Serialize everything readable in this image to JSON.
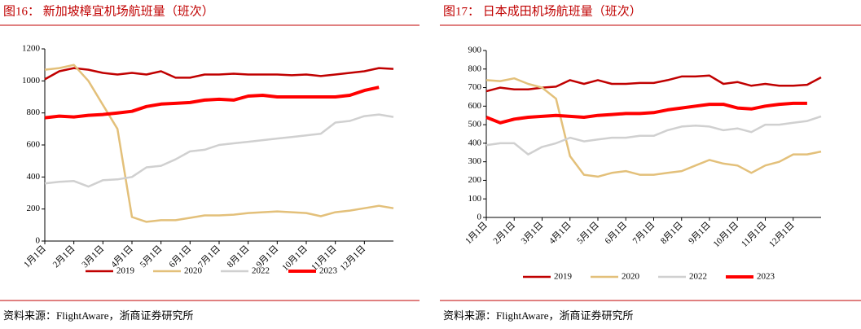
{
  "chart_data": [
    {
      "type": "line",
      "title": "图16：  新加坡樟宜机场航班量（班次）",
      "source": "资料来源：FlightAware，浙商证券研究所",
      "categories": [
        "1月1日",
        null,
        "2月1日",
        null,
        "3月1日",
        null,
        "4月1日",
        null,
        "5月1日",
        null,
        "6月1日",
        null,
        "7月1日",
        null,
        "8月1日",
        null,
        "9月1日",
        null,
        "10月1日",
        null,
        "11月1日",
        null,
        "12月1日",
        null,
        null
      ],
      "ylim": [
        0,
        1200
      ],
      "yticks": [
        0,
        200,
        400,
        600,
        800,
        1000,
        1200
      ],
      "grid": false,
      "series": [
        {
          "name": "2019",
          "color": "#c00000",
          "values": [
            1010,
            1060,
            1080,
            1070,
            1050,
            1040,
            1050,
            1040,
            1060,
            1020,
            1020,
            1040,
            1040,
            1045,
            1040,
            1040,
            1040,
            1035,
            1040,
            1030,
            1040,
            1050,
            1060,
            1080,
            1075
          ]
        },
        {
          "name": "2020",
          "color": "#e3c07a",
          "values": [
            1070,
            1080,
            1100,
            1000,
            850,
            700,
            150,
            120,
            130,
            130,
            145,
            160,
            160,
            165,
            175,
            180,
            185,
            180,
            175,
            155,
            180,
            190,
            205,
            220,
            205
          ]
        },
        {
          "name": "2022",
          "color": "#d0d0d0",
          "values": [
            360,
            370,
            375,
            340,
            380,
            385,
            400,
            460,
            470,
            510,
            560,
            570,
            600,
            610,
            620,
            630,
            640,
            650,
            660,
            670,
            740,
            750,
            780,
            790,
            775
          ]
        },
        {
          "name": "2023",
          "color": "#ff0000",
          "values": [
            770,
            780,
            775,
            785,
            790,
            800,
            810,
            840,
            855,
            860,
            865,
            880,
            885,
            880,
            905,
            910,
            900,
            900,
            900,
            900,
            900,
            910,
            940,
            960,
            null
          ]
        }
      ]
    },
    {
      "type": "line",
      "title": "图17：  日本成田机场航班量（班次）",
      "source": "资料来源：FlightAware，浙商证券研究所",
      "categories": [
        "1月1日",
        null,
        "2月1日",
        null,
        "3月1日",
        null,
        "4月1日",
        null,
        "5月1日",
        null,
        "6月1日",
        null,
        "7月1日",
        null,
        "8月1日",
        null,
        "9月1日",
        null,
        "10月1日",
        null,
        "11月1日",
        null,
        "12月1日",
        null,
        null
      ],
      "ylim": [
        0,
        900
      ],
      "yticks": [
        0,
        100,
        200,
        300,
        400,
        500,
        600,
        700,
        800,
        900
      ],
      "grid": false,
      "series": [
        {
          "name": "2019",
          "color": "#c00000",
          "values": [
            680,
            700,
            690,
            690,
            700,
            705,
            740,
            720,
            740,
            720,
            720,
            725,
            725,
            740,
            760,
            760,
            765,
            720,
            730,
            710,
            720,
            710,
            710,
            715,
            755
          ]
        },
        {
          "name": "2020",
          "color": "#e3c07a",
          "values": [
            740,
            735,
            750,
            720,
            700,
            640,
            330,
            230,
            220,
            240,
            250,
            230,
            230,
            240,
            250,
            280,
            310,
            290,
            280,
            240,
            280,
            300,
            340,
            340,
            355
          ]
        },
        {
          "name": "2022",
          "color": "#d0d0d0",
          "values": [
            390,
            400,
            400,
            340,
            380,
            400,
            430,
            410,
            420,
            430,
            430,
            440,
            440,
            470,
            490,
            495,
            490,
            470,
            480,
            460,
            500,
            500,
            510,
            520,
            545
          ]
        },
        {
          "name": "2023",
          "color": "#ff0000",
          "values": [
            540,
            510,
            530,
            540,
            545,
            550,
            545,
            540,
            550,
            555,
            560,
            560,
            565,
            580,
            590,
            600,
            610,
            610,
            590,
            585,
            600,
            610,
            615,
            615,
            null
          ]
        }
      ]
    }
  ]
}
